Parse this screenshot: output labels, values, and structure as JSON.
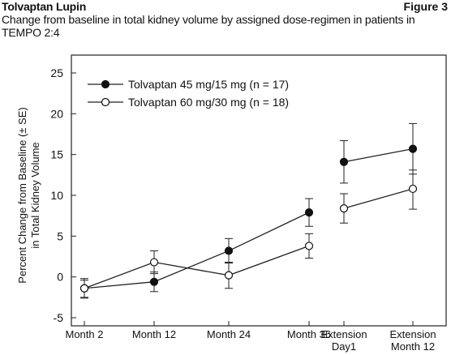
{
  "header": {
    "drug_name": "Tolvaptan Lupin",
    "figure_label": "Figure 3",
    "caption": "Change from baseline in total kidney volume by assigned dose-regimen in patients in TEMPO 2:4"
  },
  "chart_data": {
    "type": "line",
    "title": "",
    "ylabel_lines": [
      "Percent Change from Baseline (± SE)",
      "in Total Kidney Volume"
    ],
    "xlabel": "",
    "categories": [
      [
        "Month 2"
      ],
      [
        "Month 12"
      ],
      [
        "Month 24"
      ],
      [
        "Month 36"
      ],
      [
        "Extension",
        "Day1"
      ],
      [
        "Extension",
        "Month 12"
      ]
    ],
    "ylim": [
      -5,
      25
    ],
    "yticks": [
      -5,
      0,
      5,
      10,
      15,
      20,
      25
    ],
    "legend_position": "top-left",
    "segments": [
      [
        0,
        1,
        2,
        3
      ],
      [
        4,
        5
      ]
    ],
    "series": [
      {
        "name": "Tolvaptan 45 mg/15 mg (n = 17)",
        "marker": "filled-circle",
        "values": [
          -1.4,
          -0.6,
          3.2,
          7.9,
          14.1,
          15.7
        ],
        "se_low": [
          -2.6,
          -1.8,
          1.7,
          6.2,
          11.5,
          12.6
        ],
        "se_high": [
          -0.2,
          0.6,
          4.7,
          9.6,
          16.7,
          18.8
        ]
      },
      {
        "name": "Tolvaptan 60 mg/30 mg (n = 18)",
        "marker": "open-circle",
        "values": [
          -1.4,
          1.8,
          0.2,
          3.8,
          8.4,
          10.8
        ],
        "se_low": [
          -2.5,
          0.4,
          -1.4,
          2.3,
          6.6,
          8.3
        ],
        "se_high": [
          -0.4,
          3.2,
          1.8,
          5.3,
          10.2,
          13.1
        ]
      }
    ]
  }
}
